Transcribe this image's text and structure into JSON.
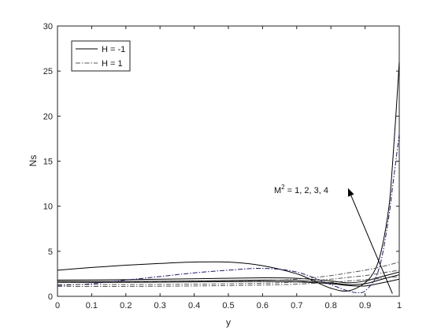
{
  "chart_data": {
    "type": "line",
    "xlabel": "y",
    "ylabel": "Ns",
    "xlim": [
      0,
      1
    ],
    "ylim": [
      0,
      30
    ],
    "xticks": [
      "0",
      "0.1",
      "0.2",
      "0.3",
      "0.4",
      "0.5",
      "0.6",
      "0.7",
      "0.8",
      "0.9",
      "1"
    ],
    "yticks": [
      "0",
      "5",
      "10",
      "15",
      "20",
      "25",
      "30"
    ],
    "legend_position": "top-left",
    "grid": false,
    "legend": [
      {
        "label": "H = -1",
        "style": "solid",
        "color": "#000000"
      },
      {
        "label": "H = 1",
        "style": "dash-dot",
        "color": "#555555"
      }
    ],
    "annotation": {
      "text_base": "M",
      "text_sup": "2",
      "text_rest": " = 1, 2, 3, 4",
      "arrow_from": [
        0.98,
        0.3
      ],
      "arrow_to": [
        0.85,
        12
      ]
    },
    "series": [
      {
        "group": "H = -1",
        "style": "solid",
        "color": "#000000",
        "x": [
          0,
          0.1,
          0.2,
          0.3,
          0.4,
          0.5,
          0.6,
          0.7,
          0.75,
          0.8,
          0.85,
          0.9,
          0.93,
          0.95,
          0.97,
          0.98,
          0.99,
          1.0
        ],
        "y": [
          2.9,
          3.2,
          3.45,
          3.65,
          3.8,
          3.8,
          3.4,
          2.5,
          1.7,
          0.9,
          0.6,
          1.5,
          3.0,
          5.5,
          10.0,
          14.5,
          20.0,
          26.0
        ]
      },
      {
        "group": "H = -1",
        "style": "solid",
        "color": "#000000",
        "x": [
          0,
          0.2,
          0.4,
          0.6,
          0.7,
          0.8,
          0.85,
          0.9,
          0.95,
          1.0
        ],
        "y": [
          1.8,
          1.85,
          1.95,
          2.05,
          2.0,
          1.7,
          1.5,
          1.7,
          2.2,
          2.7
        ]
      },
      {
        "group": "H = -1",
        "style": "solid",
        "color": "#000000",
        "x": [
          0,
          0.2,
          0.4,
          0.6,
          0.7,
          0.8,
          0.85,
          0.9,
          0.95,
          1.0
        ],
        "y": [
          1.65,
          1.65,
          1.7,
          1.8,
          1.75,
          1.5,
          1.3,
          1.4,
          1.9,
          2.4
        ]
      },
      {
        "group": "H = -1",
        "style": "solid",
        "color": "#000000",
        "x": [
          0,
          0.2,
          0.4,
          0.6,
          0.7,
          0.8,
          0.85,
          0.9,
          0.95,
          1.0
        ],
        "y": [
          1.55,
          1.55,
          1.6,
          1.65,
          1.6,
          1.4,
          1.2,
          1.15,
          1.5,
          1.9
        ]
      },
      {
        "group": "H = 1",
        "style": "dash-dot",
        "color": "#1a1a66",
        "x": [
          0,
          0.1,
          0.2,
          0.3,
          0.4,
          0.5,
          0.6,
          0.7,
          0.8,
          0.85,
          0.88,
          0.9,
          0.93,
          0.95,
          0.97,
          0.98,
          0.99,
          1.0
        ],
        "y": [
          1.2,
          1.4,
          1.8,
          2.2,
          2.6,
          2.9,
          3.1,
          2.7,
          1.3,
          0.6,
          0.4,
          0.6,
          2.0,
          4.5,
          9.0,
          12.0,
          15.0,
          18.0
        ]
      },
      {
        "group": "H = 1",
        "style": "dash-dot",
        "color": "#555555",
        "x": [
          0,
          0.2,
          0.4,
          0.6,
          0.7,
          0.8,
          0.85,
          0.9,
          0.95,
          1.0
        ],
        "y": [
          1.6,
          1.6,
          1.65,
          1.75,
          1.9,
          2.3,
          2.6,
          2.9,
          3.3,
          3.8
        ]
      },
      {
        "group": "H = 1",
        "style": "dash-dot",
        "color": "#555555",
        "x": [
          0,
          0.2,
          0.4,
          0.6,
          0.7,
          0.8,
          0.85,
          0.9,
          0.95,
          1.0
        ],
        "y": [
          1.3,
          1.3,
          1.35,
          1.45,
          1.6,
          1.9,
          2.1,
          2.3,
          2.6,
          2.9
        ]
      },
      {
        "group": "H = 1",
        "style": "dash-dot",
        "color": "#555555",
        "x": [
          0,
          0.2,
          0.4,
          0.6,
          0.7,
          0.8,
          0.85,
          0.9,
          0.95,
          1.0
        ],
        "y": [
          1.1,
          1.1,
          1.15,
          1.25,
          1.35,
          1.55,
          1.7,
          1.85,
          2.0,
          2.2
        ]
      }
    ]
  }
}
